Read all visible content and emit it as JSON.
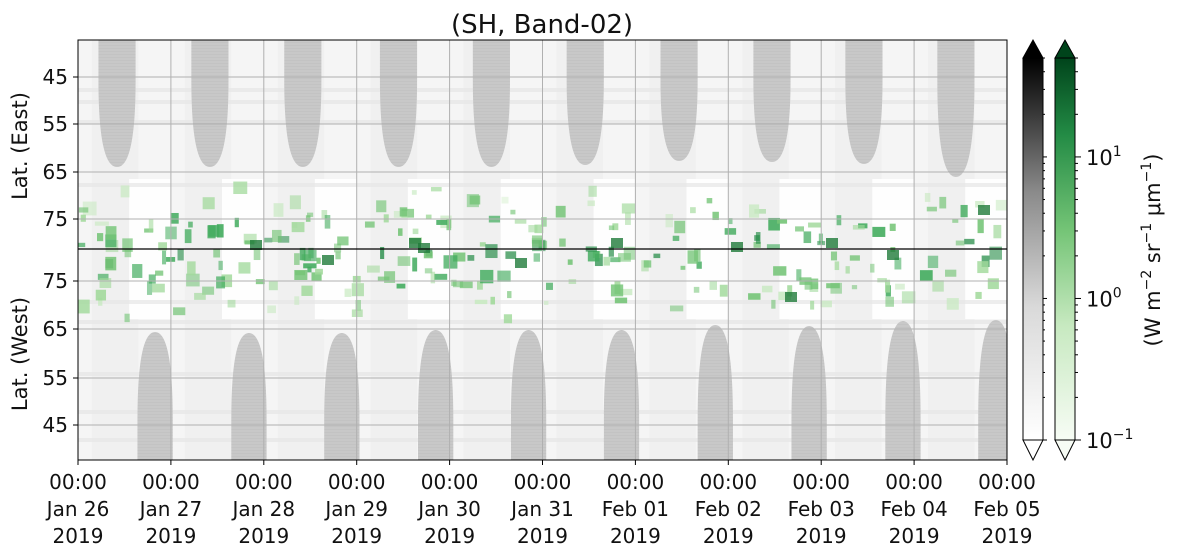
{
  "chart_data": {
    "type": "heatmap",
    "title": "(SH, Band-02)",
    "ylabel_top": "Lat. (East)",
    "ylabel_bottom": "Lat. (West)",
    "yticks_top": [
      "45",
      "55",
      "65",
      "75"
    ],
    "yticks_bottom": [
      "75",
      "65",
      "55",
      "45"
    ],
    "xticks": [
      [
        "00:00",
        "Jan 26",
        "2019"
      ],
      [
        "00:00",
        "Jan 27",
        "2019"
      ],
      [
        "00:00",
        "Jan 28",
        "2019"
      ],
      [
        "00:00",
        "Jan 29",
        "2019"
      ],
      [
        "00:00",
        "Jan 30",
        "2019"
      ],
      [
        "00:00",
        "Jan 31",
        "2019"
      ],
      [
        "00:00",
        "Feb 01",
        "2019"
      ],
      [
        "00:00",
        "Feb 02",
        "2019"
      ],
      [
        "00:00",
        "Feb 03",
        "2019"
      ],
      [
        "00:00",
        "Feb 04",
        "2019"
      ],
      [
        "00:00",
        "Feb 05",
        "2019"
      ]
    ],
    "xlim": [
      "2019-01-26T00:00",
      "2019-02-05T00:00"
    ],
    "grid": true,
    "colorbars": [
      {
        "name": "gray",
        "colormap": "Greys",
        "scale": "log",
        "extend": "both"
      },
      {
        "name": "green",
        "colormap": "Greens",
        "scale": "log",
        "extend": "both",
        "tick_labels": [
          "10^-1",
          "10^0",
          "10^1"
        ],
        "tick_values": [
          0.1,
          1,
          10
        ],
        "range": [
          0.1,
          50
        ]
      }
    ],
    "colorbar_label": "(W m^-2 sr^-1 μm^-1)",
    "colors": {
      "green_dark": "#00441b",
      "green_mid": "#41ab5d",
      "green_light": "#c7e9c0",
      "gray_fill": "#c8c8c8",
      "grid": "#b0b0b0"
    }
  }
}
